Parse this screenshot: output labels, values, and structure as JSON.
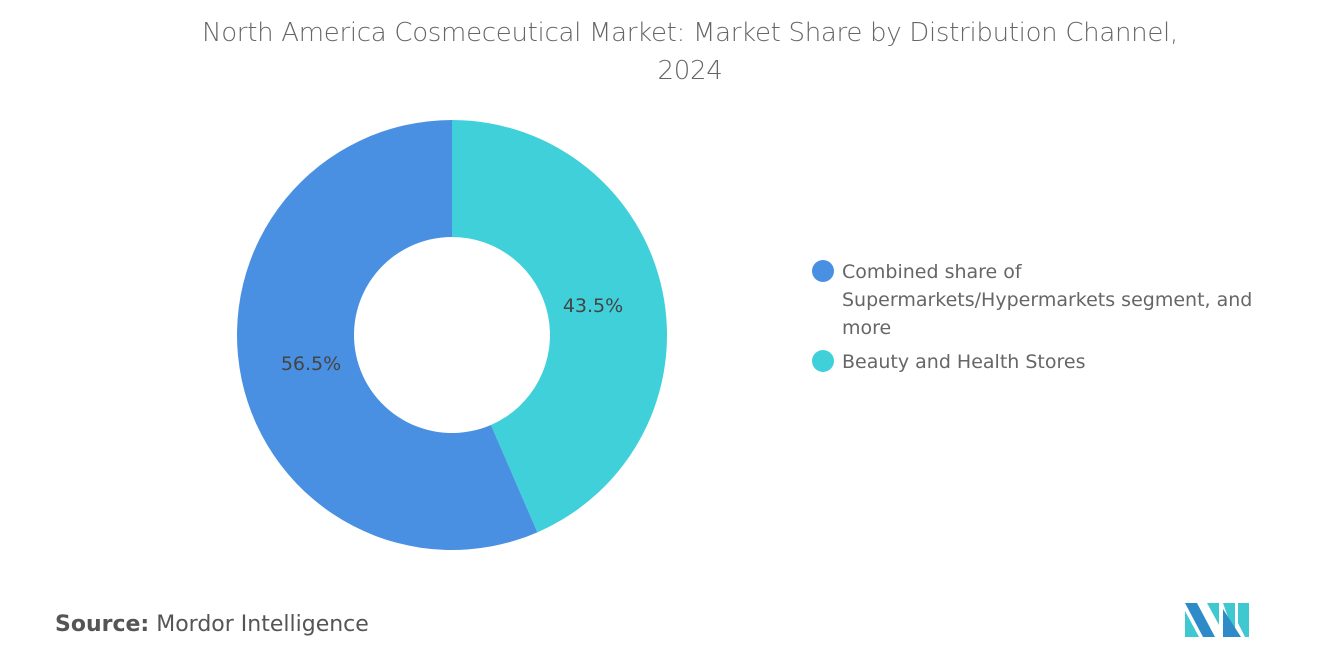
{
  "chart_data": {
    "type": "pie",
    "donut": true,
    "title": "North America Cosmeceutical Market: Market Share by Distribution Channel, 2024",
    "title_lines": [
      "North America Cosmeceutical Market: Market Share by Distribution Channel,",
      "2024"
    ],
    "slices": [
      {
        "label": "Beauty and Health Stores",
        "value": 43.5,
        "display": "43.5%",
        "color": "#40d0da"
      },
      {
        "label": "Combined share of Supermarkets/Hypermarkets segment, and more",
        "value": 56.5,
        "display": "56.5%",
        "color": "#4a90e2"
      }
    ],
    "legend": [
      {
        "label": "Combined share of Supermarkets/Hypermarkets segment, and more",
        "color": "#4a90e2"
      },
      {
        "label": "Beauty and Health Stores",
        "color": "#40d0da"
      }
    ],
    "legend_position": "right"
  },
  "source": {
    "label": "Source:",
    "value": "Mordor Intelligence"
  },
  "logo": {
    "name": "mordor-intelligence-logo",
    "colors": [
      "#2e8bc8",
      "#40c8d0"
    ]
  }
}
